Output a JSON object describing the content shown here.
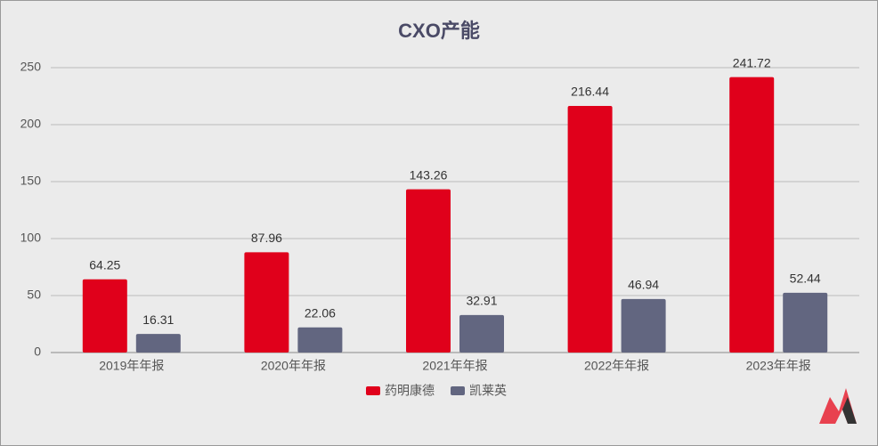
{
  "chart_data": {
    "type": "bar",
    "title": "CXO产能",
    "categories": [
      "2019年年报",
      "2020年年报",
      "2021年年报",
      "2022年年报",
      "2023年年报"
    ],
    "series": [
      {
        "name": "药明康德",
        "color": "#e0001b",
        "values": [
          64.25,
          87.96,
          143.26,
          216.44,
          241.72
        ]
      },
      {
        "name": "凯莱英",
        "color": "#626680",
        "values": [
          16.31,
          22.06,
          32.91,
          46.94,
          52.44
        ]
      }
    ],
    "ylim": [
      0,
      250
    ],
    "yticks": [
      0,
      50,
      100,
      150,
      200,
      250
    ],
    "grid": true
  }
}
